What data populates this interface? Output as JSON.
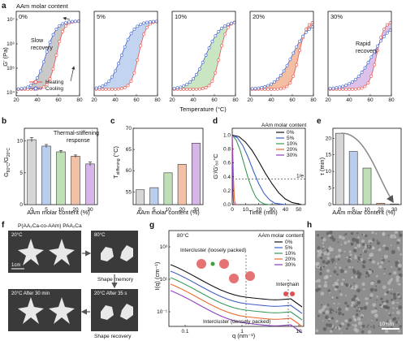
{
  "figure": {
    "panel_letters": [
      "a",
      "b",
      "c",
      "d",
      "e",
      "f",
      "g",
      "h"
    ]
  },
  "panel_a": {
    "header": "AAm molar content",
    "subpanel_labels": [
      "0%",
      "5%",
      "10%",
      "20%",
      "30%"
    ],
    "ylabel": "G' (Pa)",
    "yticks": [
      "10⁴",
      "10⁵",
      "10⁶",
      "10⁷"
    ],
    "xticks": [
      "20",
      "40",
      "60",
      "80"
    ],
    "xlabel": "Temperature (°C)",
    "legend": [
      "Heating",
      "Cooling"
    ],
    "annotation_slow": [
      "Slow",
      "recovery"
    ],
    "annotation_rapid": [
      "Rapid",
      "recovery"
    ],
    "colors": {
      "heating": "#e8504a",
      "cooling": "#3f5fc8",
      "fills": [
        "#bfbfbf",
        "#b9cdef",
        "#bfe0b6",
        "#f2b392",
        "#d6b6e8"
      ]
    }
  },
  "panel_b": {
    "ylabel_main": "G",
    "ylabel_sub1": "80°C",
    "ylabel_sub2": "20°C",
    "annotation": [
      "Thermal-stiffening",
      "response"
    ],
    "xlabel": "AAm molar content (%)",
    "xticks": [
      "0",
      "5",
      "10",
      "20",
      "30"
    ],
    "yticks": [
      "0",
      "5",
      "10"
    ]
  },
  "panel_c": {
    "ylabel": "T",
    "ylabel_sub": "stiffening",
    "ylabel_unit": " (°C)",
    "xlabel": "AAm molar content (%)",
    "xticks": [
      "0",
      "5",
      "10",
      "20",
      "30"
    ],
    "yticks": [
      "55",
      "60",
      "65",
      "70"
    ]
  },
  "panel_d": {
    "legend_title": "AAm molar content",
    "legend": [
      "0%",
      "5%",
      "10%",
      "20%",
      "30%"
    ],
    "ylabel": "G'/G'₈₀°C",
    "xlabel": "Time (min)",
    "xticks": [
      "0",
      "10",
      "20",
      "30",
      "40",
      "50"
    ],
    "yticks": [
      "0.0",
      "0.2",
      "0.4",
      "0.6",
      "0.8",
      "1.0"
    ],
    "threshold_label": "1/e"
  },
  "panel_e": {
    "ylabel": "τ (min)",
    "xlabel": "AAm molar content (%)",
    "xticks": [
      "0",
      "5",
      "10",
      "20",
      "30"
    ],
    "yticks": [
      "0",
      "5",
      "10",
      "15",
      "20"
    ]
  },
  "panel_f": {
    "top_label": "P(AA₂Ca-co-AAm)  PAA₂Ca",
    "photo_labels": [
      "20°C",
      "80°C",
      "20°C  After 30 min",
      "20°C  After 35 s"
    ],
    "scale": "1cm",
    "caption_memory": "Shape memory",
    "caption_recovery": "Shape recovery"
  },
  "panel_g": {
    "temp": "80°C",
    "legend_title": "AAm molar content",
    "legend": [
      "0%",
      "5%",
      "10%",
      "20%",
      "30%"
    ],
    "ylabel": "I(q) (cm⁻¹)",
    "xlabel": "q (nm⁻¹)",
    "xticks": [
      "0.1",
      "1",
      "10"
    ],
    "yticks": [
      "10⁻¹",
      "10¹",
      "10³"
    ],
    "ann_loose": "Intercluster (loosely packed)",
    "ann_dense": "Intercluster (densely packed)",
    "ann_chain": "Interchain"
  },
  "panel_h": {
    "scalebar": "10 nm"
  },
  "chart_data": [
    {
      "type": "bar",
      "panel": "b",
      "categories": [
        "0",
        "5",
        "10",
        "20",
        "30"
      ],
      "values": [
        10.2,
        9.2,
        8.3,
        7.6,
        6.4
      ],
      "errors": [
        0.35,
        0.25,
        0.2,
        0.2,
        0.3
      ],
      "colors": [
        "#d6d6d6",
        "#b9cdef",
        "#bfe0b6",
        "#f2c0a6",
        "#d6b6e8"
      ],
      "ylim": [
        0,
        12
      ]
    },
    {
      "type": "bar",
      "panel": "c",
      "categories": [
        "0",
        "5",
        "10",
        "20",
        "30"
      ],
      "values": [
        55.5,
        56.0,
        59.5,
        61.5,
        66.5
      ],
      "colors": [
        "#d6d6d6",
        "#b9cdef",
        "#bfe0b6",
        "#f2c0a6",
        "#d6b6e8"
      ],
      "ylim": [
        52,
        70
      ]
    },
    {
      "type": "line",
      "panel": "d",
      "xlim": [
        0,
        55
      ],
      "ylim": [
        0,
        1.1
      ],
      "threshold": 0.368,
      "series": [
        {
          "name": "0%",
          "color": "#111111",
          "x": [
            0,
            5,
            10,
            15,
            20,
            25,
            30,
            35,
            40,
            45,
            50,
            52
          ],
          "y": [
            1.0,
            0.98,
            0.9,
            0.78,
            0.62,
            0.45,
            0.3,
            0.17,
            0.08,
            0.03,
            0.01,
            0.0
          ]
        },
        {
          "name": "5%",
          "color": "#3f5fc8",
          "x": [
            0,
            4,
            8,
            12,
            16,
            20,
            24,
            28,
            32,
            36,
            40
          ],
          "y": [
            1.0,
            0.96,
            0.85,
            0.68,
            0.48,
            0.3,
            0.16,
            0.07,
            0.02,
            0.01,
            0.0
          ]
        },
        {
          "name": "10%",
          "color": "#3a9a5a",
          "x": [
            0,
            3,
            6,
            9,
            12,
            15,
            18,
            21,
            24,
            28
          ],
          "y": [
            1.0,
            0.93,
            0.78,
            0.58,
            0.38,
            0.22,
            0.1,
            0.04,
            0.01,
            0.0
          ]
        },
        {
          "name": "20%",
          "color": "#e86a30",
          "x": [
            0,
            0.5,
            1,
            1.5,
            2,
            3
          ],
          "y": [
            1.0,
            0.7,
            0.35,
            0.12,
            0.03,
            0.0
          ]
        },
        {
          "name": "30%",
          "color": "#8a3fc0",
          "x": [
            0,
            0.3,
            0.6,
            1,
            1.5
          ],
          "y": [
            1.0,
            0.5,
            0.15,
            0.03,
            0.0
          ]
        }
      ]
    },
    {
      "type": "bar",
      "panel": "e",
      "categories": [
        "0",
        "5",
        "10",
        "20",
        "30"
      ],
      "values": [
        21.5,
        16.0,
        11.0,
        0.4,
        0.2
      ],
      "colors": [
        "#d6d6d6",
        "#b9cdef",
        "#bfe0b6",
        "#f2c0a6",
        "#d6b6e8"
      ],
      "ylim": [
        0,
        23
      ]
    },
    {
      "type": "line",
      "panel": "g",
      "xscale": "log",
      "yscale": "log",
      "series": [
        {
          "name": "0%",
          "color": "#111111"
        },
        {
          "name": "5%",
          "color": "#3f5fc8"
        },
        {
          "name": "10%",
          "color": "#3a9a5a"
        },
        {
          "name": "20%",
          "color": "#e86a30"
        },
        {
          "name": "30%",
          "color": "#8a3fc0"
        }
      ]
    }
  ]
}
